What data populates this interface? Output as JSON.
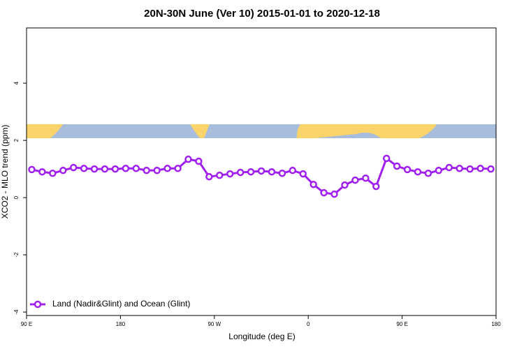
{
  "chart_data": {
    "type": "line",
    "title": "20N-30N June (Ver 10)   2015-01-01 to 2020-12-18",
    "x_label": "Longitude (deg E)",
    "y_label": "XCO2 - MLO trend (ppm)",
    "x": [
      95,
      105,
      115,
      125,
      135,
      145,
      155,
      165,
      175,
      185,
      195,
      205,
      215,
      225,
      235,
      245,
      255,
      265,
      275,
      285,
      295,
      305,
      315,
      325,
      335,
      345,
      355,
      365,
      375,
      385,
      395,
      405,
      415,
      425,
      435,
      445,
      455,
      465,
      475,
      485,
      495,
      505,
      515,
      525,
      535
    ],
    "series": [
      {
        "name": "Land (Nadir&Glint) and Ocean (Glint)",
        "color": "#a020f0",
        "values": [
          0.98,
          0.9,
          0.85,
          0.95,
          1.05,
          1.02,
          1.0,
          1.0,
          1.0,
          1.02,
          1.02,
          0.95,
          0.95,
          1.02,
          1.02,
          1.34,
          1.27,
          0.73,
          0.78,
          0.83,
          0.88,
          0.9,
          0.93,
          0.9,
          0.85,
          0.95,
          0.83,
          0.46,
          0.17,
          0.12,
          0.44,
          0.61,
          0.68,
          0.39,
          1.37,
          1.1,
          0.98,
          0.9,
          0.85,
          0.95,
          1.05,
          1.02,
          1.0,
          1.02,
          1.0
        ]
      }
    ],
    "xlim": [
      90,
      540
    ],
    "xticks": [
      {
        "value": 90,
        "label": "90 E"
      },
      {
        "value": 180,
        "label": "180"
      },
      {
        "value": 270,
        "label": "90 W"
      },
      {
        "value": 360,
        "label": "0"
      },
      {
        "value": 450,
        "label": "90 E"
      },
      {
        "value": 540,
        "label": "180"
      }
    ],
    "ylim": [
      -4.12,
      5.93
    ],
    "yticks": [
      -4,
      -2,
      0,
      2,
      4
    ],
    "legend": "bottom-left"
  }
}
